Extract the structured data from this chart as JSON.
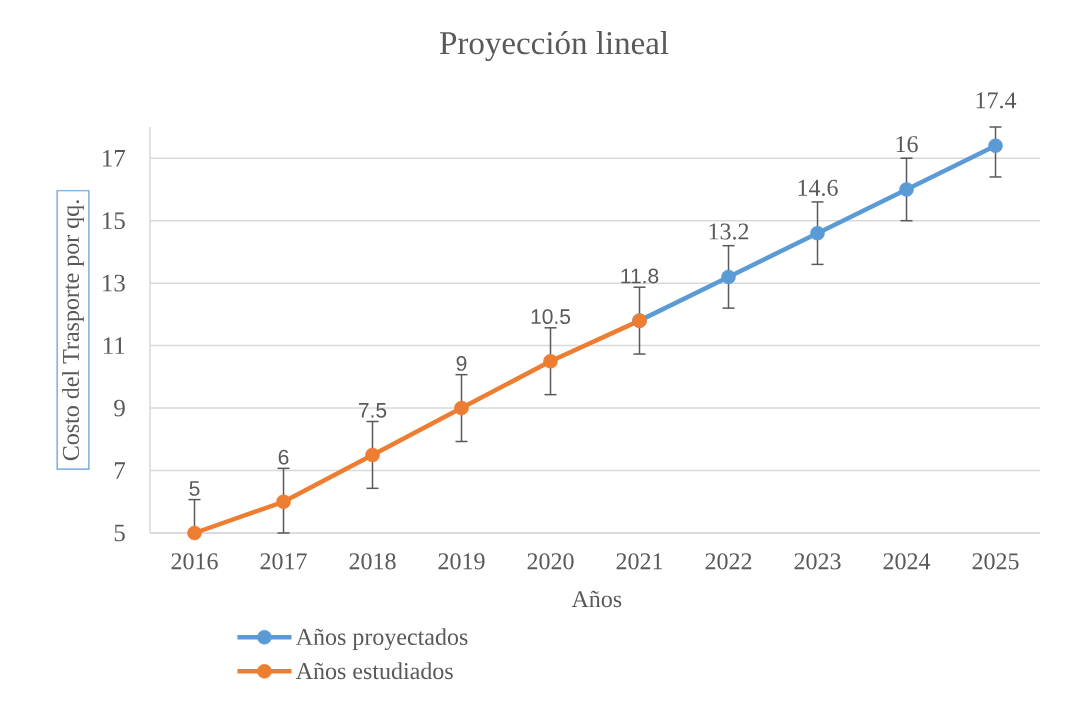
{
  "chart_data": {
    "type": "line",
    "title": "Proyección lineal",
    "xlabel": "Años",
    "ylabel": "Costo del Trasporte por qq.",
    "categories": [
      "2016",
      "2017",
      "2018",
      "2019",
      "2020",
      "2021",
      "2022",
      "2023",
      "2024",
      "2025"
    ],
    "series": [
      {
        "name": "Años proyectados",
        "color": "#5b9bd5",
        "values": [
          null,
          null,
          null,
          null,
          null,
          11.8,
          13.2,
          14.6,
          16,
          17.4
        ],
        "errors": [
          null,
          null,
          null,
          null,
          null,
          null,
          1,
          1,
          1,
          [
            16.4,
            18
          ]
        ],
        "value_labels": [
          null,
          null,
          null,
          null,
          null,
          null,
          "13.2",
          "14.6",
          "16",
          "17.4"
        ]
      },
      {
        "name": "Años estudiados",
        "color": "#ed7d31",
        "values": [
          5,
          6,
          7.5,
          9,
          10.5,
          11.8,
          null,
          null,
          null,
          null
        ],
        "errors": [
          [
            5,
            6.07
          ],
          [
            5,
            7.07
          ],
          1.07,
          1.07,
          1.07,
          1.07,
          null,
          null,
          null,
          null
        ],
        "value_labels": [
          "5",
          "6",
          "7.5",
          "9",
          "10.5",
          "11.8",
          null,
          null,
          null,
          null
        ]
      }
    ],
    "ylim": [
      5,
      18
    ],
    "yticks": [
      5,
      7,
      9,
      11,
      13,
      15,
      17
    ],
    "grid": "y",
    "legend": "bottom",
    "marker": "circle",
    "line_style": "solid"
  }
}
